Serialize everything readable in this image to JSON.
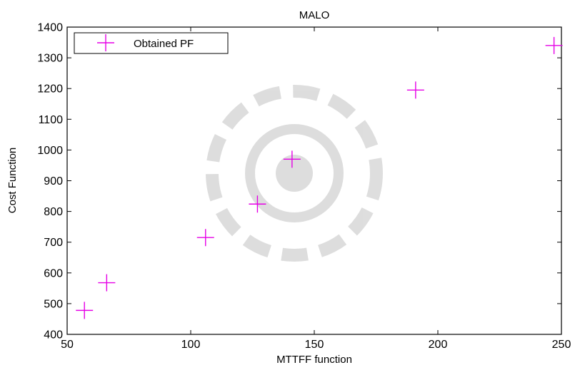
{
  "chart_data": {
    "type": "scatter",
    "title": "MALO",
    "xlabel": "MTTFF function",
    "ylabel": "Cost Function",
    "xlim": [
      50,
      250
    ],
    "ylim": [
      400,
      1400
    ],
    "xticks": [
      50,
      100,
      150,
      200,
      250
    ],
    "yticks": [
      400,
      500,
      600,
      700,
      800,
      900,
      1000,
      1100,
      1200,
      1300,
      1400
    ],
    "grid": false,
    "legend_position": "top-left",
    "marker": "+",
    "series": [
      {
        "name": "Obtained PF",
        "color": "#e600e6",
        "points": [
          {
            "x": 57,
            "y": 478
          },
          {
            "x": 66,
            "y": 568
          },
          {
            "x": 106,
            "y": 715
          },
          {
            "x": 127,
            "y": 824
          },
          {
            "x": 141,
            "y": 970
          },
          {
            "x": 191,
            "y": 1195
          },
          {
            "x": 247,
            "y": 1340
          }
        ]
      }
    ]
  }
}
